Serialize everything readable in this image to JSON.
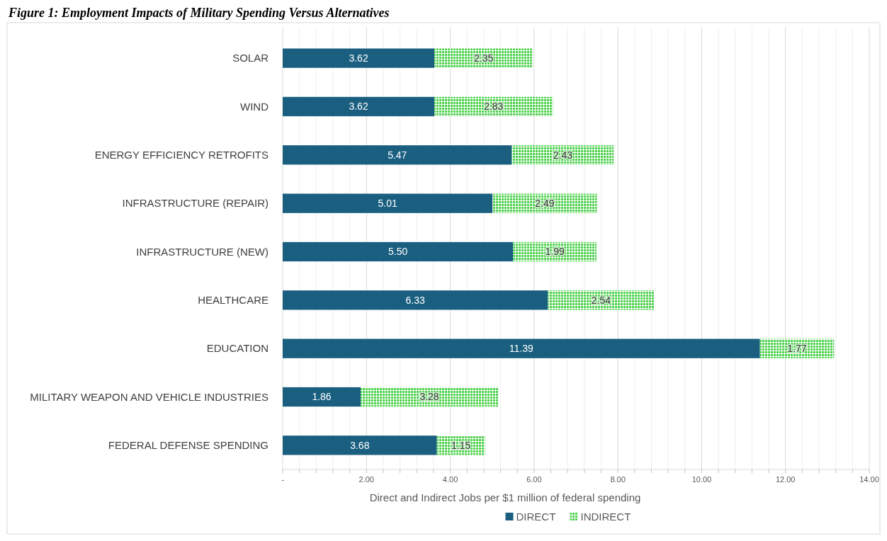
{
  "chart_data": {
    "type": "bar",
    "orientation": "horizontal",
    "stacked": true,
    "title": "Figure 1: Employment Impacts of Military Spending Versus Alternatives",
    "categories": [
      "SOLAR",
      "WIND",
      "ENERGY EFFICIENCY RETROFITS",
      "INFRASTRUCTURE (REPAIR)",
      "INFRASTRUCTURE (NEW)",
      "HEALTHCARE",
      "EDUCATION",
      "MILITARY WEAPON AND VEHICLE INDUSTRIES",
      "FEDERAL DEFENSE SPENDING"
    ],
    "series": [
      {
        "name": "DIRECT",
        "color": "#1a5f80",
        "values": [
          3.62,
          3.62,
          5.47,
          5.01,
          5.5,
          6.33,
          11.39,
          1.86,
          3.68
        ],
        "value_labels": [
          "3.62",
          "3.62",
          "5.47",
          "5.01",
          "5.50",
          "6.33",
          "11.39",
          "1.86",
          "3.68"
        ]
      },
      {
        "name": "INDIRECT",
        "color": "#4fd14f",
        "values": [
          2.35,
          2.83,
          2.43,
          2.49,
          1.99,
          2.54,
          1.77,
          3.28,
          1.15
        ],
        "value_labels": [
          "2.35",
          "2.83",
          "2.43",
          "2.49",
          "1.99",
          "2.54",
          "1.77",
          "3.28",
          "1.15"
        ]
      }
    ],
    "xlabel": "Direct and Indirect Jobs per $1 million of federal spending",
    "xlim": [
      0,
      14
    ],
    "xticks": [
      {
        "value": 0,
        "label": "-"
      },
      {
        "value": 0.4,
        "label": null
      },
      {
        "value": 0.8,
        "label": null
      },
      {
        "value": 1.2,
        "label": null
      },
      {
        "value": 1.6,
        "label": null
      },
      {
        "value": 2,
        "label": "2.00"
      },
      {
        "value": 2.4,
        "label": null
      },
      {
        "value": 2.8,
        "label": null
      },
      {
        "value": 3.2,
        "label": null
      },
      {
        "value": 3.6,
        "label": null
      },
      {
        "value": 4,
        "label": "4.00"
      },
      {
        "value": 4.4,
        "label": null
      },
      {
        "value": 4.8,
        "label": null
      },
      {
        "value": 5.2,
        "label": null
      },
      {
        "value": 5.6,
        "label": null
      },
      {
        "value": 6,
        "label": "6.00"
      },
      {
        "value": 6.4,
        "label": null
      },
      {
        "value": 6.8,
        "label": null
      },
      {
        "value": 7.2,
        "label": null
      },
      {
        "value": 7.6,
        "label": null
      },
      {
        "value": 8,
        "label": "8.00"
      },
      {
        "value": 8.4,
        "label": null
      },
      {
        "value": 8.8,
        "label": null
      },
      {
        "value": 9.2,
        "label": null
      },
      {
        "value": 9.6,
        "label": null
      },
      {
        "value": 10,
        "label": "10.00"
      },
      {
        "value": 10.4,
        "label": null
      },
      {
        "value": 10.8,
        "label": null
      },
      {
        "value": 11.2,
        "label": null
      },
      {
        "value": 11.6,
        "label": null
      },
      {
        "value": 12,
        "label": "12.00"
      },
      {
        "value": 12.4,
        "label": null
      },
      {
        "value": 12.8,
        "label": null
      },
      {
        "value": 13.2,
        "label": null
      },
      {
        "value": 13.6,
        "label": null
      },
      {
        "value": 14,
        "label": "14.00"
      }
    ],
    "grid": "x",
    "legend": "bottom"
  }
}
